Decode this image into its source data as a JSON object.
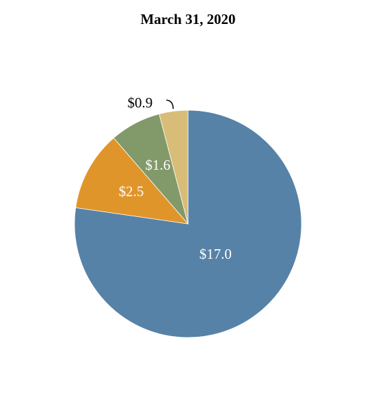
{
  "chart_data": {
    "type": "pie",
    "title": "March 31, 2020",
    "values": [
      17.0,
      2.5,
      1.6,
      0.9
    ],
    "value_labels": [
      "$17.0",
      "$2.5",
      "$1.6",
      "$0.9"
    ],
    "colors": [
      "#5682a7",
      "#e0952b",
      "#82996a",
      "#d8bd78"
    ]
  }
}
